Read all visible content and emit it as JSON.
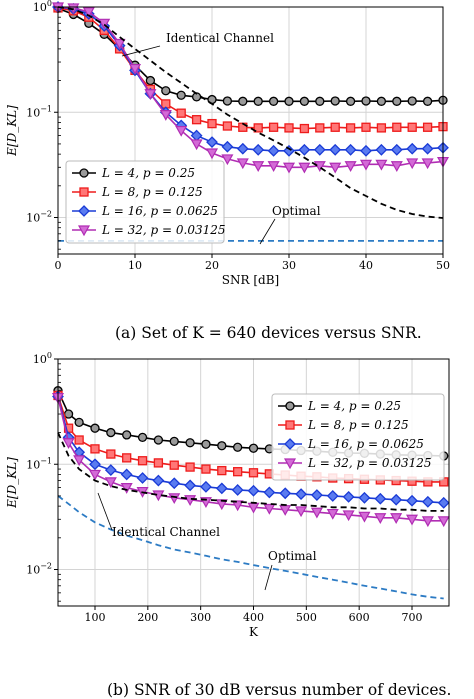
{
  "chart_data": [
    {
      "type": "line",
      "caption": "(a) Set of K = 640 devices versus SNR.",
      "xlabel": "SNR [dB]",
      "ylabel": "E[D_KL]",
      "xlim": [
        0,
        50
      ],
      "ylim": [
        0.0045,
        1.0
      ],
      "yscale": "log",
      "xticks": [
        "0",
        "10",
        "20",
        "30",
        "40",
        "50"
      ],
      "yticks": [
        "10^0",
        "10^-1",
        "10^-2"
      ],
      "grid": true,
      "legend_position": "bottom-left",
      "x": [
        0,
        2,
        4,
        6,
        8,
        10,
        12,
        14,
        16,
        18,
        20,
        22,
        24,
        26,
        28,
        30,
        32,
        34,
        36,
        38,
        40,
        42,
        44,
        46,
        48,
        50
      ],
      "series": [
        {
          "name": "L = 4, p = 0.25",
          "color": "#000000",
          "marker": "circle",
          "values": [
            0.97,
            0.85,
            0.7,
            0.55,
            0.4,
            0.28,
            0.2,
            0.16,
            0.145,
            0.14,
            0.132,
            0.128,
            0.127,
            0.127,
            0.127,
            0.127,
            0.127,
            0.127,
            0.128,
            0.127,
            0.128,
            0.127,
            0.127,
            0.128,
            0.127,
            0.13
          ]
        },
        {
          "name": "L = 8, p = 0.125",
          "color": "#ee1c1c",
          "marker": "square",
          "values": [
            0.98,
            0.92,
            0.8,
            0.6,
            0.4,
            0.25,
            0.165,
            0.12,
            0.098,
            0.085,
            0.078,
            0.074,
            0.072,
            0.071,
            0.072,
            0.071,
            0.07,
            0.071,
            0.072,
            0.071,
            0.072,
            0.071,
            0.072,
            0.072,
            0.072,
            0.073
          ]
        },
        {
          "name": "L = 16, p = 0.0625",
          "color": "#1a3bd6",
          "marker": "diamond",
          "values": [
            1.0,
            0.96,
            0.86,
            0.66,
            0.43,
            0.25,
            0.15,
            0.1,
            0.075,
            0.06,
            0.052,
            0.047,
            0.045,
            0.044,
            0.043,
            0.043,
            0.044,
            0.044,
            0.044,
            0.044,
            0.043,
            0.044,
            0.044,
            0.045,
            0.045,
            0.046
          ]
        },
        {
          "name": "L = 32, p = 0.03125",
          "color": "#b02db3",
          "marker": "triangle-down",
          "values": [
            1.0,
            0.98,
            0.9,
            0.7,
            0.45,
            0.26,
            0.15,
            0.095,
            0.067,
            0.05,
            0.041,
            0.036,
            0.033,
            0.031,
            0.031,
            0.03,
            0.03,
            0.031,
            0.03,
            0.031,
            0.032,
            0.032,
            0.031,
            0.033,
            0.033,
            0.034
          ]
        },
        {
          "name": "Identical Channel",
          "color": "#000000",
          "dash": true,
          "values": [
            1.0,
            0.95,
            0.83,
            0.68,
            0.52,
            0.4,
            0.31,
            0.24,
            0.19,
            0.15,
            0.12,
            0.095,
            0.078,
            0.064,
            0.054,
            0.045,
            0.037,
            0.03,
            0.024,
            0.019,
            0.016,
            0.0135,
            0.0118,
            0.0108,
            0.0102,
            0.0099
          ]
        },
        {
          "name": "Optimal",
          "color": "#2c7bc4",
          "dash": true,
          "values": [
            0.006,
            0.006,
            0.006,
            0.006,
            0.006,
            0.006,
            0.006,
            0.006,
            0.006,
            0.006,
            0.006,
            0.006,
            0.006,
            0.006,
            0.006,
            0.006,
            0.006,
            0.006,
            0.006,
            0.006,
            0.006,
            0.006,
            0.006,
            0.006,
            0.006,
            0.006
          ]
        }
      ],
      "annotations": [
        "Identical Channel",
        "Optimal"
      ]
    },
    {
      "type": "line",
      "caption": "(b) SNR of 30 dB versus number of devices.",
      "xlabel": "K",
      "ylabel": "E[D_KL]",
      "xlim": [
        30,
        770
      ],
      "ylim": [
        0.0045,
        1.0
      ],
      "yscale": "log",
      "xticks": [
        "100",
        "200",
        "300",
        "400",
        "500",
        "600",
        "700"
      ],
      "yticks": [
        "10^0",
        "10^-1",
        "10^-2"
      ],
      "grid": true,
      "legend_position": "top-right",
      "x": [
        30,
        50,
        70,
        100,
        130,
        160,
        190,
        220,
        250,
        280,
        310,
        340,
        370,
        400,
        430,
        460,
        490,
        520,
        550,
        580,
        610,
        640,
        670,
        700,
        730,
        760
      ],
      "series": [
        {
          "name": "L = 4, p = 0.25",
          "color": "#000000",
          "marker": "circle",
          "values": [
            0.5,
            0.3,
            0.25,
            0.22,
            0.2,
            0.19,
            0.18,
            0.17,
            0.165,
            0.16,
            0.155,
            0.15,
            0.145,
            0.142,
            0.14,
            0.138,
            0.135,
            0.133,
            0.13,
            0.128,
            0.127,
            0.125,
            0.123,
            0.122,
            0.121,
            0.12
          ]
        },
        {
          "name": "L = 8, p = 0.125",
          "color": "#ee1c1c",
          "marker": "square",
          "values": [
            0.45,
            0.22,
            0.17,
            0.14,
            0.125,
            0.115,
            0.108,
            0.103,
            0.098,
            0.094,
            0.09,
            0.087,
            0.085,
            0.083,
            0.081,
            0.079,
            0.077,
            0.076,
            0.074,
            0.073,
            0.072,
            0.071,
            0.07,
            0.069,
            0.068,
            0.068
          ]
        },
        {
          "name": "L = 16, p = 0.0625",
          "color": "#1a3bd6",
          "marker": "diamond",
          "values": [
            0.44,
            0.18,
            0.13,
            0.1,
            0.088,
            0.08,
            0.074,
            0.07,
            0.066,
            0.063,
            0.061,
            0.059,
            0.057,
            0.056,
            0.054,
            0.053,
            0.052,
            0.051,
            0.05,
            0.049,
            0.048,
            0.047,
            0.046,
            0.045,
            0.044,
            0.043
          ]
        },
        {
          "name": "L = 32, p = 0.03125",
          "color": "#b02db3",
          "marker": "triangle-down",
          "values": [
            0.43,
            0.16,
            0.11,
            0.08,
            0.068,
            0.06,
            0.055,
            0.051,
            0.048,
            0.046,
            0.044,
            0.042,
            0.041,
            0.039,
            0.038,
            0.037,
            0.036,
            0.035,
            0.034,
            0.033,
            0.032,
            0.031,
            0.031,
            0.03,
            0.029,
            0.029
          ]
        },
        {
          "name": "Identical Channel",
          "color": "#000000",
          "dash": true,
          "values": [
            0.2,
            0.12,
            0.09,
            0.07,
            0.062,
            0.057,
            0.054,
            0.051,
            0.049,
            0.047,
            0.046,
            0.045,
            0.044,
            0.043,
            0.042,
            0.041,
            0.041,
            0.04,
            0.039,
            0.039,
            0.038,
            0.038,
            0.037,
            0.037,
            0.036,
            0.036
          ]
        },
        {
          "name": "Optimal",
          "color": "#2c7bc4",
          "dash": true,
          "values": [
            0.05,
            0.042,
            0.035,
            0.028,
            0.024,
            0.021,
            0.019,
            0.017,
            0.0155,
            0.0145,
            0.0135,
            0.0125,
            0.0118,
            0.011,
            0.0103,
            0.0097,
            0.0091,
            0.0085,
            0.008,
            0.0075,
            0.007,
            0.0066,
            0.0062,
            0.0058,
            0.0055,
            0.0053
          ]
        }
      ],
      "annotations": [
        "Identical Channel",
        "Optimal"
      ]
    }
  ]
}
